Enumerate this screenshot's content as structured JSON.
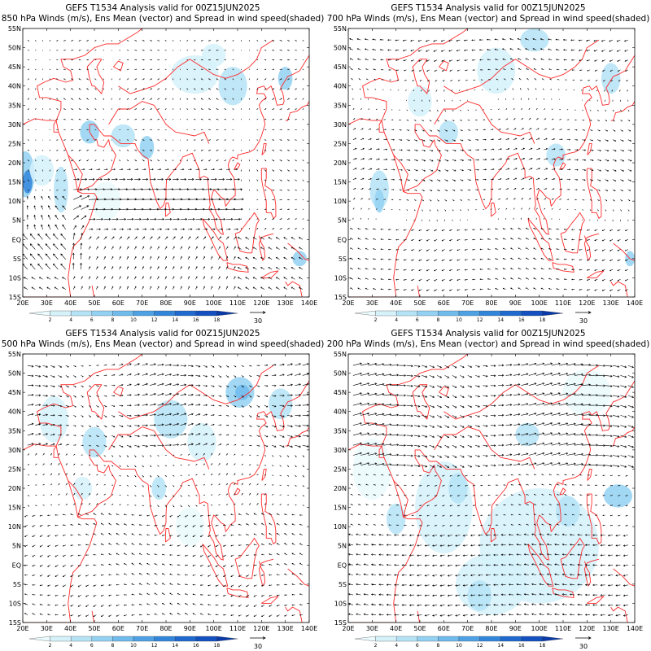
{
  "panels": [
    {
      "title_line1": "GEFS T1534 Analysis valid for 00Z15JUN2025",
      "title_line2": "850 hPa Winds (m/s), Ens Mean (vector) and Spread in wind speed(shaded)",
      "level_hPa": 850
    },
    {
      "title_line1": "GEFS T1534 Analysis valid for 00Z15JUN2025",
      "title_line2": "700 hPa Winds (m/s), Ens Mean (vector) and Spread in wind speed(shaded)",
      "level_hPa": 700
    },
    {
      "title_line1": "GEFS T1534 Analysis valid for 00Z15JUN2025",
      "title_line2": "500 hPa Winds (m/s), Ens Mean (vector) and Spread in wind speed(shaded)",
      "level_hPa": 500
    },
    {
      "title_line1": "GEFS T1534 Analysis valid for 00Z15JUN2025",
      "title_line2": "200 hPa Winds (m/s), Ens Mean (vector) and Spread in wind speed(shaded)",
      "level_hPa": 200
    }
  ],
  "lon_labels": [
    "20E",
    "30E",
    "40E",
    "50E",
    "60E",
    "70E",
    "80E",
    "90E",
    "100E",
    "110E",
    "120E",
    "130E",
    "140E"
  ],
  "lat_labels": [
    "15S",
    "10S",
    "5S",
    "EQ",
    "5N",
    "10N",
    "15N",
    "20N",
    "25N",
    "30N",
    "35N",
    "40N",
    "45N",
    "50N",
    "55N"
  ],
  "colorbar": {
    "labels": [
      "2",
      "4",
      "6",
      "8",
      "10",
      "12",
      "14",
      "16",
      "18"
    ],
    "colors": [
      "#eafafd",
      "#d5f1fa",
      "#b5e3f6",
      "#93d1f2",
      "#6fbbec",
      "#4ea2e4",
      "#3286da",
      "#1f69cf",
      "#1450c0",
      "#0a3aa8"
    ]
  },
  "reference_vector_label": "30",
  "colors": {
    "coastline": "#ff2a2a",
    "vector": "#000000",
    "shade_light": "#d5f1fa",
    "shade_mid": "#93d1f2",
    "shade_dark": "#3286da"
  }
}
